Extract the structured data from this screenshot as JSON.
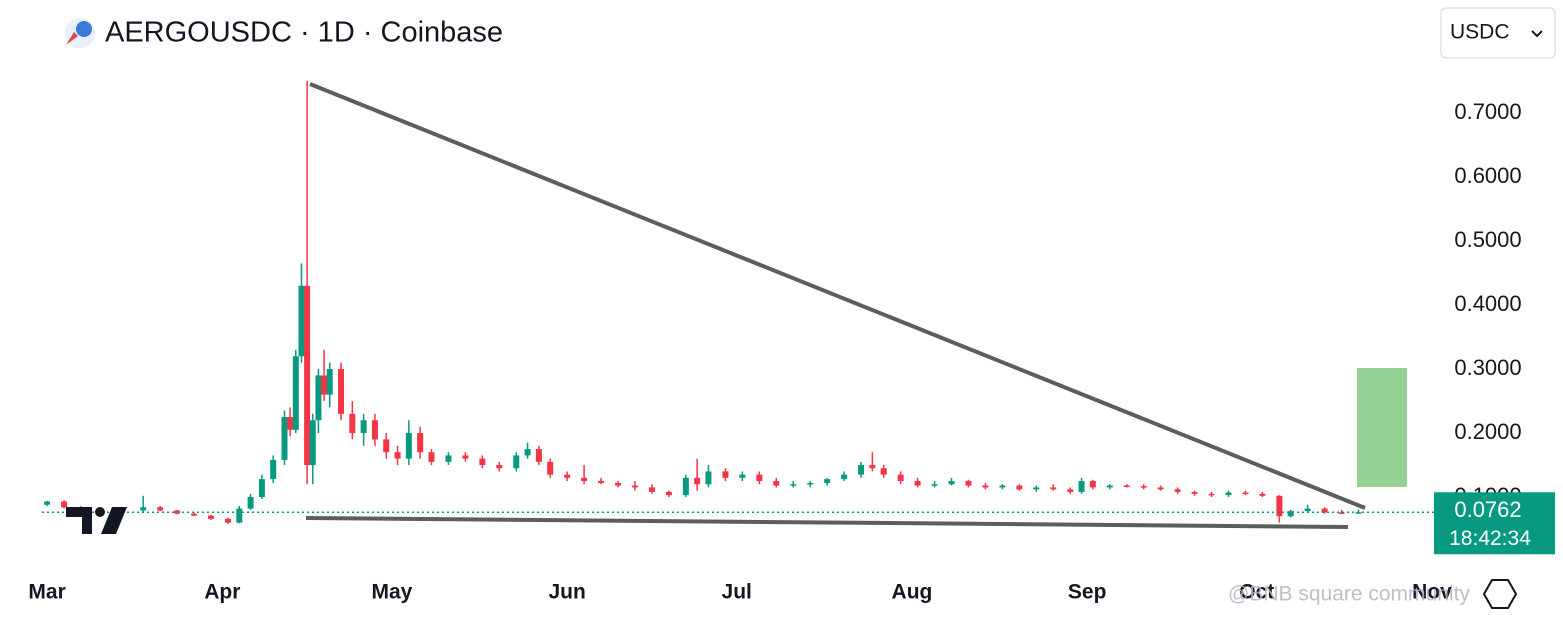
{
  "header": {
    "title": "AERGOUSDC · 1D · Coinbase",
    "currency": "USDC"
  },
  "price_box": {
    "price": "0.0762",
    "countdown": "18:42:34"
  },
  "watermark": "@BNB square community",
  "chart_data": {
    "type": "candlestick",
    "x": [
      0,
      3,
      6,
      9,
      13,
      17,
      20,
      23,
      26,
      29,
      32,
      34,
      36,
      38,
      40,
      42,
      43,
      44,
      45,
      46,
      47,
      48,
      49,
      50,
      52,
      54,
      56,
      58,
      60,
      62,
      64,
      66,
      68,
      71,
      74,
      77,
      80,
      83,
      85,
      87,
      89,
      92,
      95,
      98,
      101,
      104,
      107,
      110,
      113,
      115,
      117,
      120,
      123,
      126,
      129,
      132,
      135,
      138,
      141,
      144,
      146,
      148,
      151,
      154,
      157,
      160,
      163,
      166,
      169,
      172,
      175,
      178,
      181,
      183,
      185,
      188,
      191,
      194,
      197,
      200,
      203,
      206,
      209,
      212,
      215,
      218,
      220,
      223,
      226,
      229,
      232
    ],
    "open": [
      0.088,
      0.093,
      0.084,
      0.078,
      0.076,
      0.079,
      0.084,
      0.079,
      0.074,
      0.071,
      0.066,
      0.06,
      0.082,
      0.1,
      0.128,
      0.158,
      0.225,
      0.205,
      0.32,
      0.43,
      0.15,
      0.22,
      0.29,
      0.26,
      0.3,
      0.23,
      0.2,
      0.22,
      0.19,
      0.17,
      0.16,
      0.2,
      0.17,
      0.155,
      0.165,
      0.16,
      0.15,
      0.145,
      0.165,
      0.175,
      0.155,
      0.135,
      0.13,
      0.125,
      0.122,
      0.118,
      0.115,
      0.108,
      0.103,
      0.13,
      0.12,
      0.14,
      0.13,
      0.135,
      0.125,
      0.118,
      0.12,
      0.122,
      0.128,
      0.135,
      0.15,
      0.145,
      0.135,
      0.125,
      0.118,
      0.12,
      0.125,
      0.118,
      0.115,
      0.118,
      0.112,
      0.115,
      0.112,
      0.108,
      0.125,
      0.115,
      0.118,
      0.117,
      0.115,
      0.112,
      0.108,
      0.105,
      0.103,
      0.107,
      0.105,
      0.102,
      0.07,
      0.078,
      0.082,
      0.076,
      0.075
    ],
    "high": [
      0.094,
      0.095,
      0.086,
      0.081,
      0.08,
      0.102,
      0.086,
      0.08,
      0.076,
      0.072,
      0.068,
      0.086,
      0.105,
      0.135,
      0.165,
      0.235,
      0.24,
      0.33,
      0.465,
      0.75,
      0.23,
      0.3,
      0.33,
      0.31,
      0.31,
      0.25,
      0.23,
      0.23,
      0.2,
      0.18,
      0.22,
      0.21,
      0.175,
      0.17,
      0.17,
      0.165,
      0.155,
      0.17,
      0.185,
      0.18,
      0.16,
      0.14,
      0.15,
      0.13,
      0.125,
      0.125,
      0.12,
      0.11,
      0.135,
      0.16,
      0.15,
      0.145,
      0.14,
      0.14,
      0.13,
      0.125,
      0.125,
      0.13,
      0.14,
      0.155,
      0.17,
      0.15,
      0.14,
      0.13,
      0.125,
      0.13,
      0.127,
      0.122,
      0.12,
      0.12,
      0.118,
      0.12,
      0.115,
      0.13,
      0.127,
      0.12,
      0.12,
      0.12,
      0.118,
      0.115,
      0.11,
      0.108,
      0.11,
      0.11,
      0.108,
      0.103,
      0.08,
      0.088,
      0.084,
      0.08,
      0.08
    ],
    "low": [
      0.086,
      0.082,
      0.077,
      0.075,
      0.074,
      0.077,
      0.078,
      0.073,
      0.07,
      0.064,
      0.058,
      0.059,
      0.08,
      0.097,
      0.122,
      0.15,
      0.195,
      0.2,
      0.31,
      0.12,
      0.12,
      0.2,
      0.25,
      0.24,
      0.22,
      0.19,
      0.18,
      0.18,
      0.16,
      0.15,
      0.15,
      0.16,
      0.15,
      0.15,
      0.155,
      0.145,
      0.14,
      0.14,
      0.16,
      0.15,
      0.13,
      0.125,
      0.12,
      0.12,
      0.115,
      0.11,
      0.105,
      0.1,
      0.1,
      0.11,
      0.115,
      0.125,
      0.125,
      0.12,
      0.115,
      0.115,
      0.115,
      0.118,
      0.125,
      0.13,
      0.14,
      0.13,
      0.12,
      0.115,
      0.115,
      0.118,
      0.115,
      0.112,
      0.112,
      0.11,
      0.108,
      0.11,
      0.105,
      0.105,
      0.112,
      0.112,
      0.115,
      0.112,
      0.11,
      0.105,
      0.102,
      0.1,
      0.1,
      0.103,
      0.1,
      0.06,
      0.068,
      0.075,
      0.074,
      0.073,
      0.074
    ],
    "close": [
      0.093,
      0.084,
      0.078,
      0.076,
      0.079,
      0.084,
      0.079,
      0.074,
      0.071,
      0.066,
      0.06,
      0.082,
      0.1,
      0.128,
      0.158,
      0.225,
      0.205,
      0.32,
      0.43,
      0.15,
      0.22,
      0.29,
      0.26,
      0.3,
      0.23,
      0.2,
      0.22,
      0.19,
      0.17,
      0.16,
      0.2,
      0.17,
      0.155,
      0.165,
      0.16,
      0.15,
      0.145,
      0.165,
      0.175,
      0.155,
      0.135,
      0.13,
      0.125,
      0.122,
      0.118,
      0.115,
      0.108,
      0.103,
      0.13,
      0.12,
      0.14,
      0.13,
      0.135,
      0.125,
      0.118,
      0.12,
      0.122,
      0.128,
      0.135,
      0.15,
      0.145,
      0.135,
      0.125,
      0.118,
      0.12,
      0.125,
      0.118,
      0.115,
      0.118,
      0.112,
      0.115,
      0.112,
      0.108,
      0.125,
      0.115,
      0.118,
      0.117,
      0.115,
      0.112,
      0.108,
      0.105,
      0.103,
      0.107,
      0.105,
      0.102,
      0.07,
      0.078,
      0.082,
      0.076,
      0.075,
      0.0762
    ],
    "up_color": "#089981",
    "down_color": "#f23645",
    "xlim": [
      -0.9,
      245
    ],
    "xticks": [
      {
        "value": 0,
        "label": "Mar"
      },
      {
        "value": 31,
        "label": "Apr"
      },
      {
        "value": 61,
        "label": "May"
      },
      {
        "value": 92,
        "label": "Jun"
      },
      {
        "value": 122,
        "label": "Jul"
      },
      {
        "value": 153,
        "label": "Aug"
      },
      {
        "value": 184,
        "label": "Sep"
      },
      {
        "value": 214,
        "label": "Oct"
      },
      {
        "value": 245,
        "label": "Nov"
      }
    ],
    "ylim": [
      -0.014,
      0.775
    ],
    "yticks": [
      {
        "value": 0.1,
        "label": "0.1000"
      },
      {
        "value": 0.2,
        "label": "0.2000"
      },
      {
        "value": 0.3,
        "label": "0.3000"
      },
      {
        "value": 0.4,
        "label": "0.4000"
      },
      {
        "value": 0.5,
        "label": "0.5000"
      },
      {
        "value": 0.6,
        "label": "0.6000"
      },
      {
        "value": 0.7,
        "label": "0.7000"
      }
    ]
  }
}
